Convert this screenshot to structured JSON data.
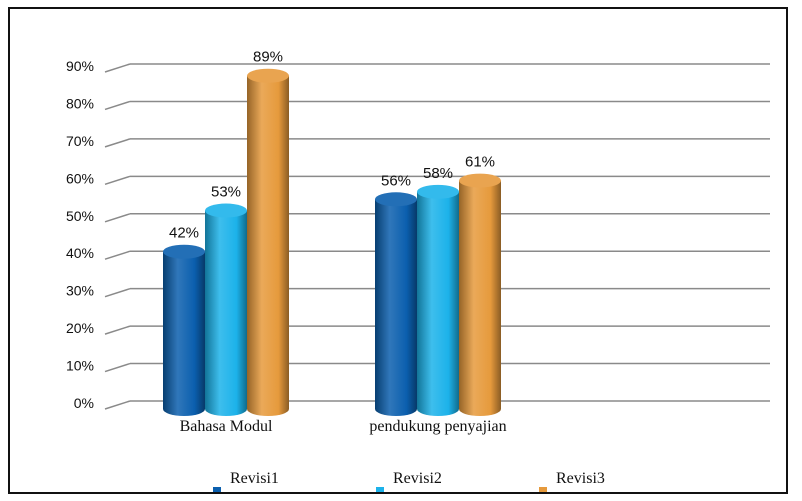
{
  "chart_data": {
    "type": "bar",
    "categories": [
      "Bahasa Modul",
      "pendukung penyajian"
    ],
    "series": [
      {
        "name": "Revisi1",
        "values": [
          42,
          56
        ],
        "color": "#0B5FAE",
        "labels": [
          "42%",
          "56%"
        ]
      },
      {
        "name": "Revisi2",
        "values": [
          53,
          58
        ],
        "color": "#1CB2EA",
        "labels": [
          "53%",
          "58%"
        ]
      },
      {
        "name": "Revisi3",
        "values": [
          89,
          61
        ],
        "color": "#E69A3C",
        "labels": [
          "89%",
          "61%"
        ]
      }
    ],
    "ylim": [
      0,
      90
    ],
    "yticks": [
      "0%",
      "10%",
      "20%",
      "30%",
      "40%",
      "50%",
      "60%",
      "70%",
      "80%",
      "90%"
    ],
    "grid": true,
    "legend": "bottom",
    "title": "",
    "xlabel": "",
    "ylabel": ""
  }
}
